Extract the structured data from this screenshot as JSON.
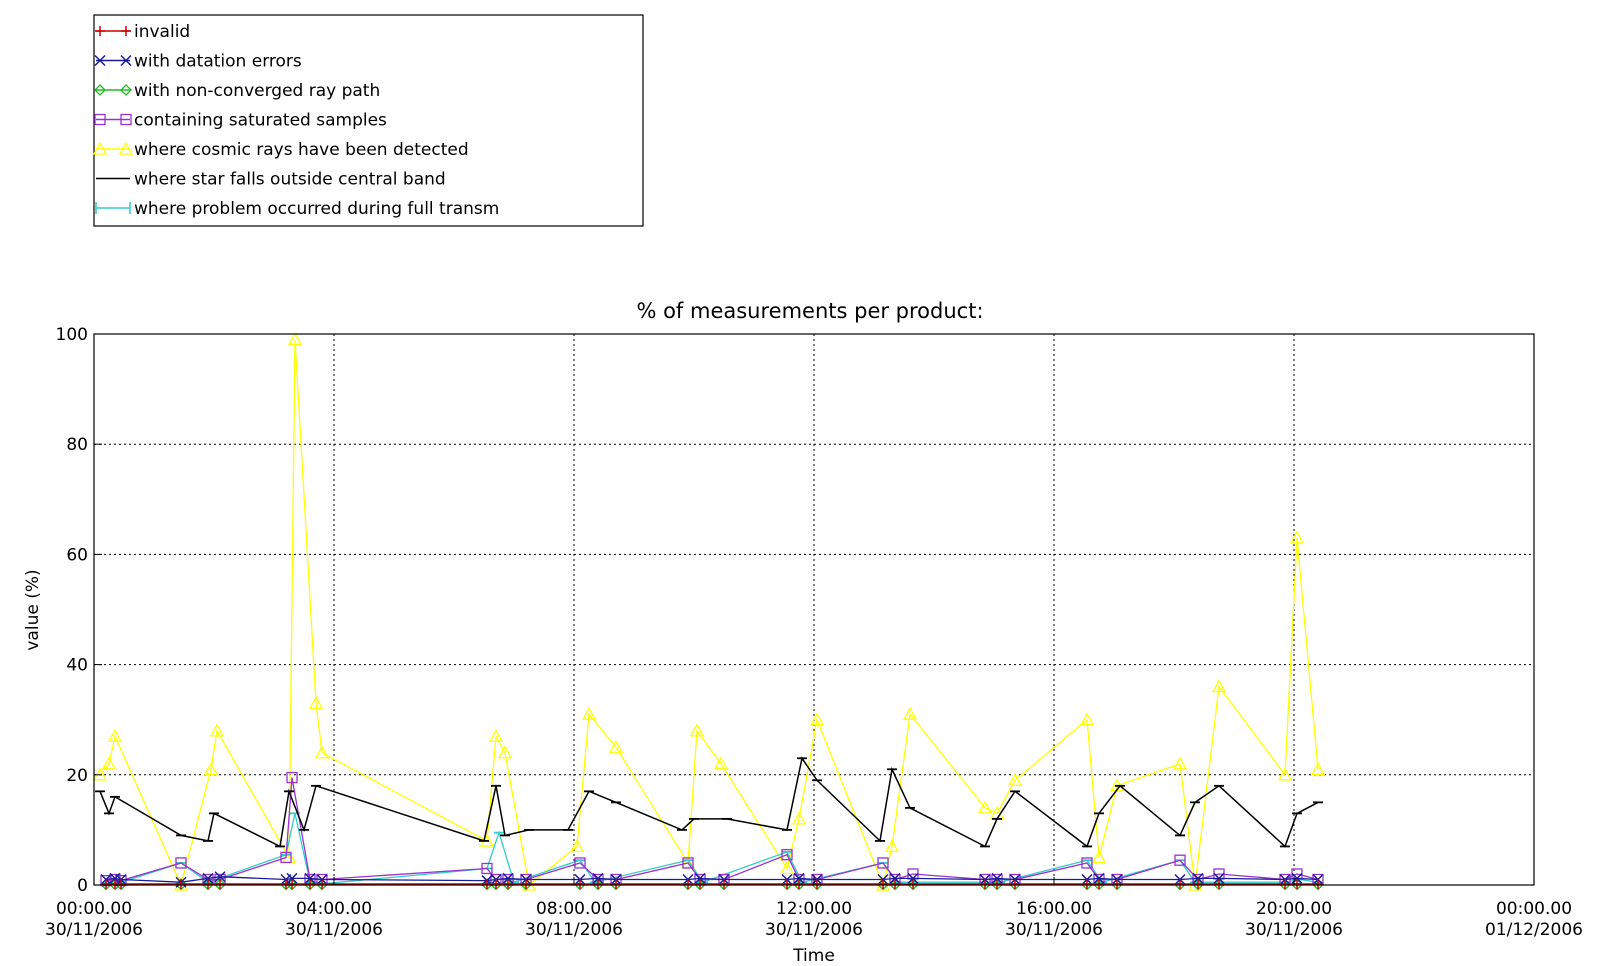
{
  "chart_data": {
    "type": "line",
    "title": "% of measurements per product:",
    "xlabel": "Time",
    "ylabel": "value (%)",
    "ylim": [
      0,
      100
    ],
    "xlim": [
      0,
      24
    ],
    "grid": true,
    "legend_position": "above-top-left",
    "yticks": [
      0,
      20,
      40,
      60,
      80,
      100
    ],
    "yticklabels": [
      "0",
      "20",
      "40",
      "60",
      "80",
      "100"
    ],
    "xticks": [
      {
        "value": 0,
        "time": "00:00.00",
        "date": "30/11/2006"
      },
      {
        "value": 4,
        "time": "04:00.00",
        "date": "30/11/2006"
      },
      {
        "value": 8,
        "time": "08:00.00",
        "date": "30/11/2006"
      },
      {
        "value": 12,
        "time": "12:00.00",
        "date": "30/11/2006"
      },
      {
        "value": 16,
        "time": "16:00.00",
        "date": "30/11/2006"
      },
      {
        "value": 20,
        "time": "20:00.00",
        "date": "30/11/2006"
      },
      {
        "value": 24,
        "time": "00:00.00",
        "date": "01/12/2006"
      }
    ],
    "series": [
      {
        "name": "invalid",
        "color": "#cc0000",
        "marker": "plus",
        "x": [
          0.2,
          0.35,
          0.45,
          1.45,
          1.9,
          2.1,
          3.2,
          3.3,
          3.6,
          3.8,
          6.55,
          6.7,
          6.9,
          7.2,
          8.1,
          8.4,
          8.7,
          9.9,
          10.1,
          10.5,
          11.55,
          11.75,
          12.05,
          13.15,
          13.35,
          13.65,
          14.85,
          15.05,
          15.35,
          16.55,
          16.75,
          17.05,
          18.1,
          18.4,
          18.75,
          19.85,
          20.05,
          20.4
        ],
        "y": [
          0.2,
          0.2,
          0.2,
          0.2,
          0.2,
          0.2,
          0.2,
          0.2,
          0.2,
          0.2,
          0.2,
          0.2,
          0.2,
          0.2,
          0.2,
          0.2,
          0.2,
          0.2,
          0.2,
          0.2,
          0.2,
          0.2,
          0.2,
          0.2,
          0.2,
          0.2,
          0.2,
          0.2,
          0.2,
          0.2,
          0.2,
          0.2,
          0.2,
          0.2,
          0.2,
          0.2,
          0.2,
          0.2
        ]
      },
      {
        "name": "with datation errors",
        "color": "#1a1a9a",
        "marker": "x",
        "x": [
          0.2,
          0.35,
          0.45,
          1.45,
          1.9,
          2.1,
          3.2,
          3.3,
          3.6,
          3.8,
          6.55,
          6.7,
          6.9,
          7.2,
          8.1,
          8.4,
          8.7,
          9.9,
          10.1,
          10.5,
          11.55,
          11.75,
          12.05,
          13.15,
          13.35,
          13.65,
          14.85,
          15.05,
          15.35,
          16.55,
          16.75,
          17.05,
          18.1,
          18.4,
          18.75,
          19.85,
          20.05,
          20.4
        ],
        "y": [
          1.0,
          1.2,
          1.0,
          0.5,
          1.2,
          1.5,
          1.0,
          1.2,
          1.2,
          1.0,
          0.8,
          1.0,
          1.2,
          1.0,
          1.0,
          1.2,
          1.0,
          1.0,
          1.2,
          1.0,
          1.0,
          1.2,
          1.0,
          1.0,
          1.2,
          1.2,
          1.0,
          1.2,
          1.0,
          1.0,
          1.2,
          1.0,
          1.0,
          1.2,
          1.2,
          1.0,
          1.2,
          1.0
        ]
      },
      {
        "name": "with non-converged ray path",
        "color": "#22bb22",
        "marker": "diamond",
        "x": [
          0.2,
          0.35,
          0.45,
          1.45,
          1.9,
          2.1,
          3.2,
          3.3,
          3.6,
          3.8,
          6.55,
          6.7,
          6.9,
          7.2,
          8.1,
          8.4,
          8.7,
          9.9,
          10.1,
          10.5,
          11.55,
          11.75,
          12.05,
          13.15,
          13.35,
          13.65,
          14.85,
          15.05,
          15.35,
          16.55,
          16.75,
          17.05,
          18.1,
          18.4,
          18.75,
          19.85,
          20.05,
          20.4
        ],
        "y": [
          0.1,
          0.1,
          0.1,
          0.1,
          0.1,
          0.1,
          0.1,
          0.1,
          0.1,
          0.1,
          0.1,
          0.1,
          0.1,
          0.1,
          0.1,
          0.1,
          0.1,
          0.1,
          0.1,
          0.1,
          0.1,
          0.1,
          0.1,
          0.1,
          0.1,
          0.1,
          0.1,
          0.1,
          0.1,
          0.1,
          0.1,
          0.1,
          0.1,
          0.1,
          0.1,
          0.1,
          0.1,
          0.1
        ]
      },
      {
        "name": "containing saturated samples",
        "color": "#9933cc",
        "marker": "square",
        "x": [
          0.2,
          0.35,
          0.45,
          1.45,
          1.9,
          2.1,
          3.2,
          3.3,
          3.6,
          3.8,
          6.55,
          6.7,
          6.9,
          7.2,
          8.1,
          8.4,
          8.7,
          9.9,
          10.1,
          10.5,
          11.55,
          11.75,
          12.05,
          13.15,
          13.35,
          13.65,
          14.85,
          15.05,
          15.35,
          16.55,
          16.75,
          17.05,
          18.1,
          18.4,
          18.75,
          19.85,
          20.05,
          20.4
        ],
        "y": [
          0.8,
          1.0,
          0.8,
          4.0,
          1.0,
          1.0,
          5.0,
          19.5,
          1.0,
          1.0,
          3.0,
          1.0,
          1.0,
          1.0,
          4.0,
          1.0,
          1.0,
          4.0,
          1.0,
          1.0,
          5.5,
          1.0,
          1.0,
          4.0,
          1.0,
          2.0,
          1.0,
          1.0,
          1.0,
          4.0,
          1.0,
          1.0,
          4.5,
          1.0,
          2.0,
          1.0,
          2.0,
          1.0
        ]
      },
      {
        "name": "where cosmic rays have been detected",
        "color": "#ffff00",
        "marker": "triangle",
        "x": [
          0.1,
          0.25,
          0.35,
          1.45,
          1.95,
          2.05,
          3.25,
          3.35,
          3.7,
          3.8,
          6.55,
          6.7,
          6.85,
          7.25,
          8.05,
          8.25,
          8.7,
          9.9,
          10.05,
          10.45,
          11.55,
          11.75,
          12.05,
          13.15,
          13.3,
          13.6,
          14.85,
          15.05,
          15.35,
          16.55,
          16.75,
          17.05,
          18.1,
          18.35,
          18.75,
          19.85,
          20.05,
          20.4
        ],
        "y": [
          20,
          22,
          27,
          0,
          21,
          28,
          5,
          99,
          33,
          24,
          8,
          27,
          24,
          0,
          7,
          31,
          25,
          4,
          28,
          22,
          3,
          12,
          30,
          0,
          7,
          31,
          14,
          13,
          19,
          30,
          5,
          18,
          22,
          0,
          36,
          20,
          63,
          21
        ]
      },
      {
        "name": "where star falls outside central band",
        "color": "#000000",
        "marker": "bar",
        "x": [
          0.1,
          0.25,
          0.35,
          1.45,
          1.9,
          2.0,
          3.1,
          3.25,
          3.5,
          3.7,
          6.5,
          6.7,
          6.85,
          7.25,
          7.9,
          8.25,
          8.7,
          9.8,
          10.0,
          10.55,
          11.55,
          11.8,
          12.05,
          13.1,
          13.3,
          13.6,
          14.85,
          15.05,
          15.35,
          16.55,
          16.75,
          17.1,
          18.1,
          18.35,
          18.75,
          19.85,
          20.05,
          20.4
        ],
        "y": [
          17,
          13,
          16,
          9,
          8,
          13,
          7,
          17,
          10,
          18,
          8,
          18,
          9,
          10,
          10,
          17,
          15,
          10,
          12,
          12,
          10,
          23,
          19,
          8,
          21,
          14,
          7,
          12,
          17,
          7,
          13,
          18,
          9,
          15,
          18,
          7,
          13,
          15
        ]
      },
      {
        "name": "where problem occurred during full transm",
        "color": "#33cccc",
        "marker": "bar",
        "x": [
          0.2,
          0.4,
          1.45,
          1.9,
          3.2,
          3.35,
          3.6,
          3.9,
          6.55,
          6.75,
          7.0,
          8.1,
          8.35,
          9.9,
          10.15,
          11.55,
          11.8,
          13.15,
          13.4,
          14.85,
          15.1,
          16.55,
          16.8,
          18.1,
          18.35,
          19.85,
          20.1,
          20.4
        ],
        "y": [
          0.3,
          0.3,
          4.0,
          0.5,
          5.5,
          13.0,
          0.5,
          0.3,
          3.0,
          9.5,
          0.5,
          4.5,
          0.5,
          4.5,
          0.5,
          6.0,
          0.5,
          4.0,
          0.5,
          0.5,
          0.5,
          4.5,
          0.5,
          4.5,
          0.5,
          0.5,
          1.0,
          0.5
        ]
      }
    ]
  }
}
